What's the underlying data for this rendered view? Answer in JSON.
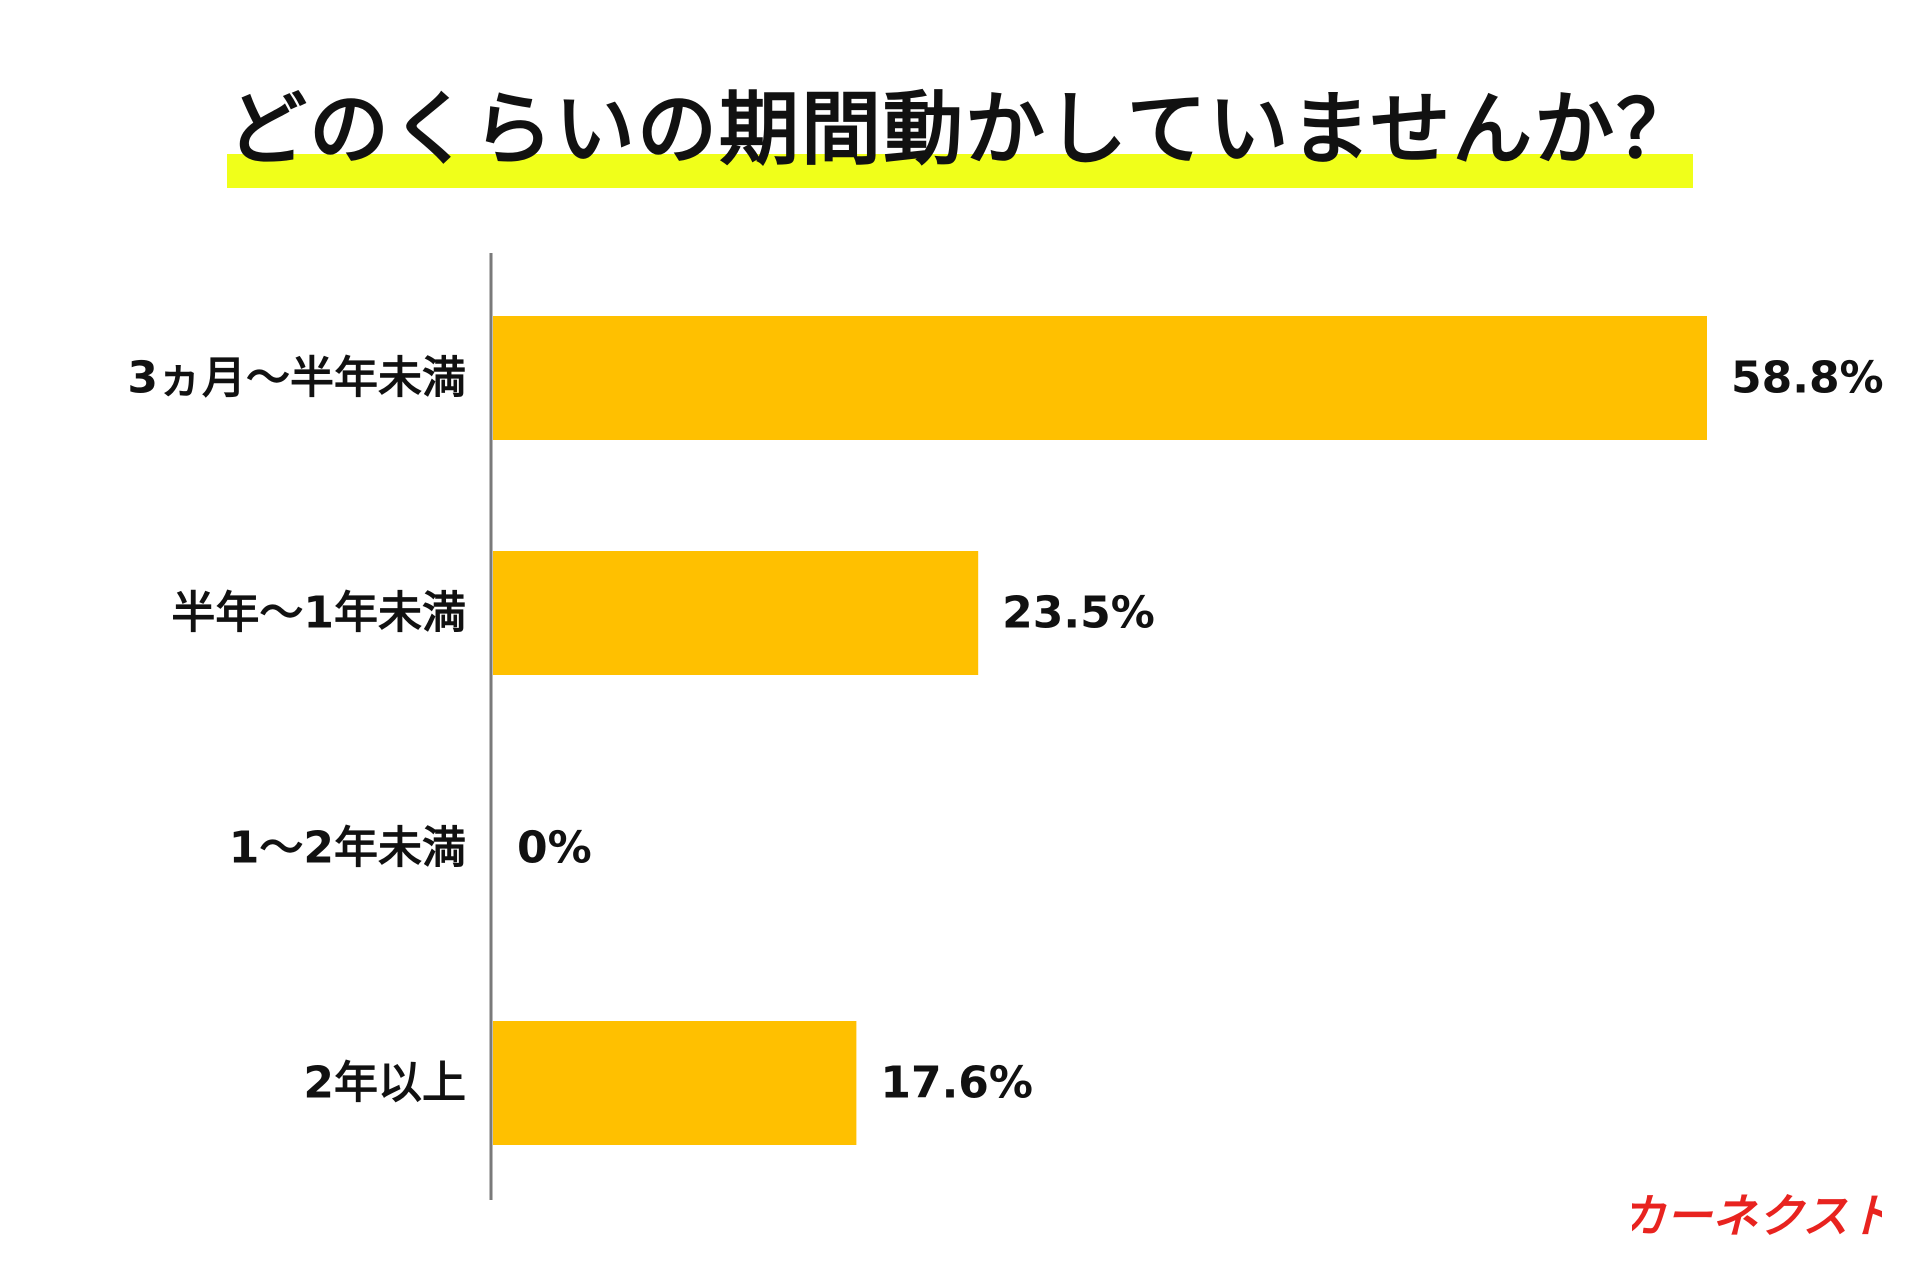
{
  "chart_data": {
    "type": "bar",
    "orientation": "horizontal",
    "title": "どのくらいの期間動かしていませんか？",
    "categories": [
      "3ヵ月〜半年未満",
      "半年〜1年未満",
      "1〜2年未満",
      "2年以上"
    ],
    "values": [
      58.8,
      23.5,
      0,
      17.6
    ],
    "value_labels": [
      "58.8%",
      "23.5%",
      "0%",
      "17.6%"
    ],
    "xlim": [
      0,
      58.8
    ],
    "grid": false,
    "bar_color": "#ffc000",
    "title_highlight_color": "#f0ff1a"
  },
  "logo": {
    "text": "カーネクスト",
    "color": "#e8231f"
  }
}
